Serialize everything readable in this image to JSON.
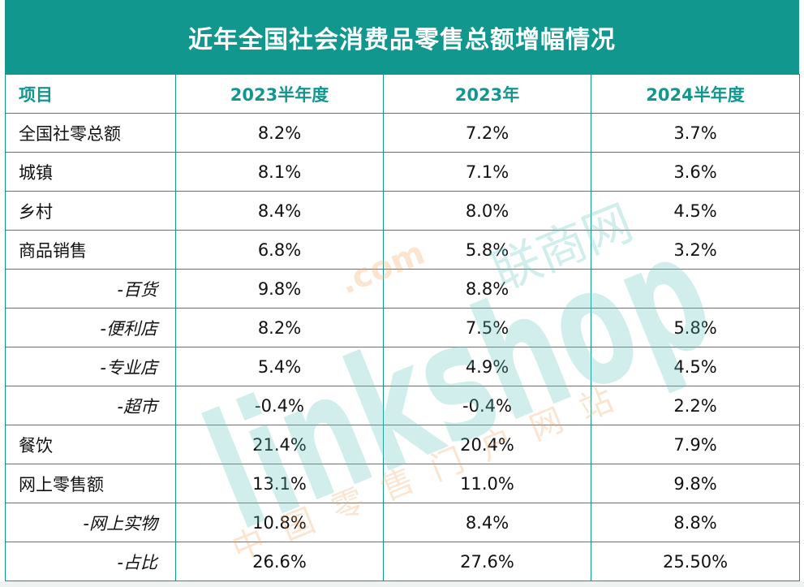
{
  "title": "近年全国社会消费品零售总额增幅情况",
  "watermark": {
    "main": "linkshop",
    "com": ".com",
    "cn_top": "联商网",
    "cn_bottom": "中国零售门户网站"
  },
  "chart_data": {
    "type": "table",
    "title": "近年全国社会消费品零售总额增幅情况",
    "columns": [
      "项目",
      "2023半年度",
      "2023年",
      "2024半年度"
    ],
    "rows": [
      {
        "label": "全国社零总额",
        "sub": false,
        "values": [
          "8.2%",
          "7.2%",
          "3.7%"
        ]
      },
      {
        "label": "城镇",
        "sub": false,
        "values": [
          "8.1%",
          "7.1%",
          "3.6%"
        ]
      },
      {
        "label": "乡村",
        "sub": false,
        "values": [
          "8.4%",
          "8.0%",
          "4.5%"
        ]
      },
      {
        "label": "商品销售",
        "sub": false,
        "values": [
          "6.8%",
          "5.8%",
          "3.2%"
        ]
      },
      {
        "label": "-百货",
        "sub": true,
        "values": [
          "9.8%",
          "8.8%",
          ""
        ]
      },
      {
        "label": "-便利店",
        "sub": true,
        "values": [
          "8.2%",
          "7.5%",
          "5.8%"
        ]
      },
      {
        "label": "-专业店",
        "sub": true,
        "values": [
          "5.4%",
          "4.9%",
          "4.5%"
        ]
      },
      {
        "label": "-超市",
        "sub": true,
        "values": [
          "-0.4%",
          "-0.4%",
          "2.2%"
        ]
      },
      {
        "label": "餐饮",
        "sub": false,
        "values": [
          "21.4%",
          "20.4%",
          "7.9%"
        ]
      },
      {
        "label": "网上零售额",
        "sub": false,
        "values": [
          "13.1%",
          "11.0%",
          "9.8%"
        ]
      },
      {
        "label": "-网上实物",
        "sub": true,
        "values": [
          "10.8%",
          "8.4%",
          "8.8%"
        ]
      },
      {
        "label": "-占比",
        "sub": true,
        "values": [
          "26.6%",
          "27.6%",
          "25.50%"
        ]
      }
    ]
  },
  "colors": {
    "header_bg": "#12978f",
    "header_text": "#ffffff",
    "column_header_text": "#12978f",
    "grid": "#12978f",
    "watermark_teal": "#5cc6c2",
    "watermark_orange": "#f2a05a"
  }
}
